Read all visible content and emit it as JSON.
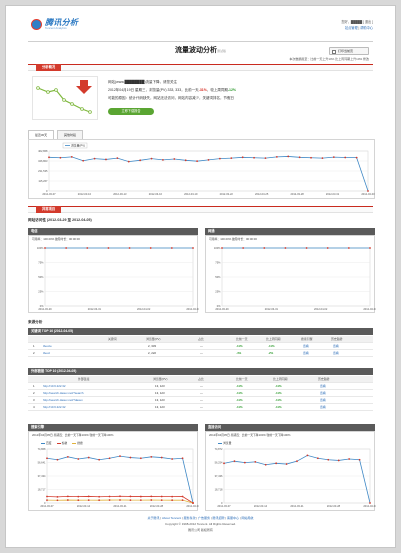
{
  "header": {
    "logo_text": "腾讯分析",
    "logo_sub": "Tencent Analytics",
    "user_line": "您好，█████ [ 退出 ]",
    "links": [
      "站点管理",
      "帮助中心"
    ],
    "title": "流量波动分析",
    "title_badge": "测试版",
    "print_label": "打印当前页",
    "meta": "本次数据截至：比前一天上升10%  比上周同期上升10%  修改"
  },
  "section1": {
    "tab": "分析概况",
    "line1": "网站(www.████████)流量下降，请您关注",
    "line2_prefix": "2012年04月19日 星期三，浏览量(PV) 333, 333，比前一天",
    "line2_v1": "-31%",
    "line2_mid": "，较上周同期",
    "line2_v2": "-12%",
    "line3": "可能的原因：统计代码缺失，网站无法访问，网站内容减少，关键词排名，节假日",
    "button": "立即下载报告"
  },
  "tabs": [
    "最近30天",
    "其他时段"
  ],
  "colors": {
    "accent": "#d33a2c",
    "line": "#3f88c5",
    "point": "#d33a2c",
    "button": "#5aa532"
  },
  "main_chart": {
    "legend": "浏览量(PV)",
    "type": "line",
    "x_ticks": [
      "2012-03-07",
      "2012-03-10",
      "2012-03-13",
      "2012-03-16",
      "2012-03-19",
      "2012-03-22",
      "2012-03-25",
      "2012-03-28",
      "2012-03-31",
      "2012-04-03"
    ],
    "y_ticks": [
      "462,868",
      "346,803",
      "231,535",
      "115,267",
      "0"
    ],
    "ylim": [
      0,
      462868
    ],
    "values": [
      390000,
      385000,
      395000,
      350000,
      375000,
      365000,
      380000,
      340000,
      355000,
      375000,
      360000,
      370000,
      355000,
      345000,
      360000,
      375000,
      380000,
      390000,
      385000,
      380000,
      395000,
      400000,
      390000,
      385000,
      380000,
      392000,
      388000,
      386000,
      0
    ]
  },
  "section2": {
    "tab": "异常项目",
    "subhead": "网站访问性 (2012-03-29 至 2012-04-05)",
    "panels": [
      {
        "head": "电信",
        "note": "可用率：100.00%  故障时长：00:00:00",
        "y_ticks": [
          "100%",
          "75%",
          "50%",
          "25%",
          "0%"
        ],
        "x_ticks": [
          "2012-03-29",
          "2012-03-31",
          "2012-04-02",
          "2012-04-04"
        ],
        "values": [
          100,
          100,
          100,
          100,
          100,
          100,
          100,
          100
        ]
      },
      {
        "head": "网通",
        "note": "可用率：100.00%  故障时长：00:00:00",
        "y_ticks": [
          "100%",
          "75%",
          "50%",
          "25%",
          "0%"
        ],
        "x_ticks": [
          "2012-03-29",
          "2012-03-31",
          "2012-04-02",
          "2012-04-04"
        ],
        "values": [
          100,
          100,
          100,
          100,
          100,
          100,
          100,
          100
        ]
      }
    ]
  },
  "sources": {
    "subhead": "来源分析",
    "t1": {
      "head": "关键词 TOP 10 (2012-04-05)",
      "cols": [
        "关键词",
        "浏览量(PV)",
        "占比",
        "比前一天",
        "比上周同期",
        "搜索引擎",
        "历史趋势"
      ],
      "rows": [
        {
          "n": "1",
          "k": "tbeuze",
          "pv": "2, 333",
          "share": "—",
          "d1": "-11%",
          "d2": "-11%",
          "se": "查看",
          "h": "查看"
        },
        {
          "n": "2",
          "k": "tbeuz",
          "pv": "2, 222",
          "share": "—",
          "d1": "-4%",
          "d2": "-2%",
          "se": "查看",
          "h": "查看"
        }
      ]
    },
    "t2": {
      "head": "外部链接 TOP 10 (2012-04-05)",
      "cols": [
        "外部链接",
        "浏览量(PV)",
        "占比",
        "比前一天",
        "比上周同期",
        "历史趋势"
      ],
      "rows": [
        {
          "n": "1",
          "k": "http://10.6.222.32",
          "pv": "13, 123",
          "share": "—",
          "d1": "-11%",
          "d2": "-11%",
          "h": "查看"
        },
        {
          "n": "2",
          "k": "http://search.daoux.net/?search",
          "pv": "13, 123",
          "share": "—",
          "d1": "-11%",
          "d2": "-11%",
          "h": "查看"
        },
        {
          "n": "3",
          "k": "http://search.daoux.net/?daoux",
          "pv": "13, 123",
          "share": "—",
          "d1": "-11%",
          "d2": "-11%",
          "h": "查看"
        },
        {
          "n": "4",
          "k": "http://10.6.222.32",
          "pv": "13, 123",
          "share": "—",
          "d1": "-11%",
          "d2": "-11%",
          "h": "查看"
        }
      ]
    }
  },
  "bottom_panels": [
    {
      "head": "搜索引擎",
      "note": "2012年04月05日 星期四：比前一天下降100%  较前一天下降100%",
      "legend": [
        "百度",
        "谷歌",
        "搜搜"
      ],
      "y_ticks": [
        "74,868",
        "56,641",
        "37,434",
        "18,717",
        "0"
      ],
      "x_ticks": [
        "2012-03-07",
        "2012-03-14",
        "2012-03-21",
        "2012-03-28",
        "2012-04-04"
      ],
      "ylim": [
        0,
        74868
      ],
      "series": [
        {
          "name": "百度",
          "color": "#3f88c5",
          "values": [
            62000,
            60000,
            64000,
            61000,
            63000,
            60000,
            62000,
            65000,
            63000,
            62000,
            64000,
            63000,
            61000,
            62000,
            0
          ]
        },
        {
          "name": "谷歌",
          "color": "#d33a2c",
          "values": [
            9000,
            8500,
            9200,
            8800,
            9100,
            8700,
            9000,
            9300,
            9100,
            8900,
            9200,
            9000,
            8800,
            9000,
            0
          ]
        },
        {
          "name": "搜搜",
          "color": "#e2b23a",
          "values": [
            4000,
            3800,
            4100,
            3900,
            4000,
            3900,
            4100,
            4200,
            4000,
            4000,
            4100,
            4000,
            3900,
            4000,
            0
          ]
        }
      ]
    },
    {
      "head": "直接访问",
      "note": "2012年04月05日 星期四：比前一天下降100%  较前一天下降100%",
      "legend": [
        "浏览量"
      ],
      "y_ticks": [
        "74,872",
        "56,254",
        "37,436",
        "18,718",
        "0"
      ],
      "x_ticks": [
        "2012-03-07",
        "2012-03-14",
        "2012-03-21",
        "2012-03-28",
        "2012-04-04"
      ],
      "ylim": [
        0,
        74872
      ],
      "series": [
        {
          "name": "浏览量",
          "color": "#3f88c5",
          "values": [
            55000,
            58000,
            56000,
            57000,
            53000,
            55000,
            54000,
            58000,
            66000,
            62000,
            60000,
            59000,
            61000,
            60000,
            0
          ]
        }
      ]
    }
  ],
  "footer": {
    "links": [
      "关于腾讯",
      "About Tencent",
      "服务条款",
      "广告服务",
      "腾讯招聘",
      "客服中心",
      "网站导航"
    ],
    "copyright": "Copyright © 1998-2012 Tencent. All Rights Reserved.",
    "company": "腾讯公司 版权所有"
  }
}
